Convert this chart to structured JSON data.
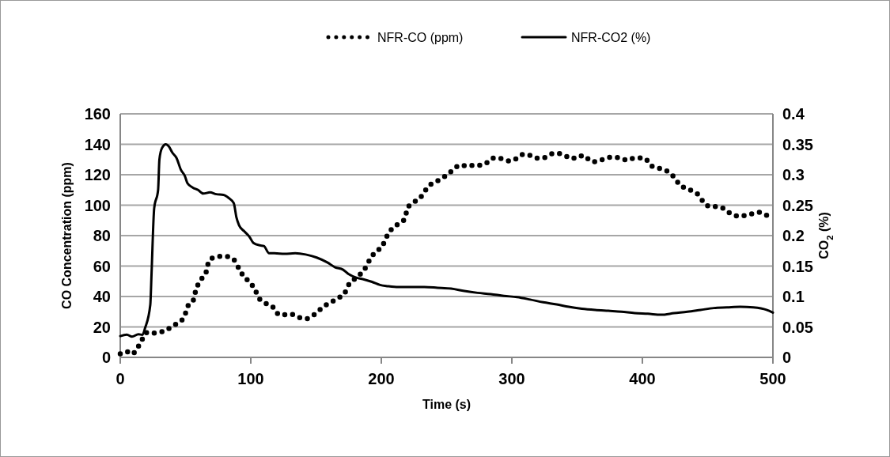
{
  "chart_data": {
    "type": "line",
    "xlabel": "Time (s)",
    "ylabel": "CO Concentration (ppm)",
    "y2label": "CO$_{2}$ (%)",
    "xlim": [
      0,
      500
    ],
    "xticks": [
      0,
      100,
      200,
      300,
      400,
      500
    ],
    "ylim": [
      0,
      160
    ],
    "yticks": [
      0,
      20,
      40,
      60,
      80,
      100,
      120,
      140,
      160
    ],
    "y2lim": [
      0,
      0.4
    ],
    "y2ticks": [
      0,
      0.05,
      0.1,
      0.15,
      0.2,
      0.25,
      0.3,
      0.35,
      0.4
    ],
    "grid": "y",
    "legend": "top",
    "series": [
      {
        "name": "NFR-CO (ppm)",
        "color": "#000000",
        "line_style": "dotted",
        "x": [
          0,
          5,
          9,
          14,
          21,
          25,
          30,
          35,
          40,
          45,
          49,
          52,
          56,
          58,
          62,
          66,
          68,
          73,
          78,
          82,
          87,
          91,
          95,
          99,
          103,
          107,
          111,
          116,
          120,
          123,
          128,
          132,
          137,
          142,
          147,
          152,
          156,
          161,
          166,
          172,
          175,
          180,
          184,
          188,
          192,
          196,
          201,
          204,
          208,
          213,
          218,
          220,
          225,
          230,
          234,
          238,
          243,
          248,
          252,
          257,
          261,
          266,
          271,
          276,
          281,
          285,
          290,
          295,
          299,
          304,
          309,
          314,
          318,
          323,
          327,
          332,
          337,
          342,
          346,
          351,
          356,
          360,
          364,
          369,
          374,
          379,
          384,
          388,
          392,
          397,
          402,
          406,
          410,
          415,
          420,
          425,
          429,
          433,
          438,
          443,
          447,
          452,
          456,
          460,
          465,
          470,
          475,
          480,
          485,
          490,
          494,
          499
        ],
        "values": [
          2.3,
          3.8,
          2.1,
          7.4,
          16.5,
          15.9,
          16.5,
          17.7,
          20.7,
          23,
          26.7,
          34,
          37.6,
          44.4,
          51.2,
          56.5,
          63.6,
          65.9,
          66.4,
          66.2,
          64.2,
          58.3,
          52.6,
          49.7,
          44.7,
          38,
          35.6,
          34,
          29.2,
          27.7,
          28.3,
          28.2,
          26.2,
          25.3,
          27.1,
          30.6,
          33.6,
          35.9,
          38.6,
          42.3,
          47.7,
          51.8,
          54.7,
          59,
          65.5,
          69.5,
          73.5,
          79.2,
          84.4,
          87.7,
          91,
          98,
          102,
          105,
          110,
          113.8,
          116,
          118.5,
          121,
          124.8,
          126.4,
          125.6,
          126.2,
          126.2,
          128,
          130.8,
          131,
          129.5,
          129,
          130.8,
          133.5,
          132.7,
          131,
          130.8,
          132,
          134,
          133.8,
          132,
          130.5,
          132.4,
          132.4,
          129,
          128.6,
          129.8,
          131.4,
          131.4,
          131,
          129.5,
          130.6,
          131,
          130.8,
          126.4,
          124.8,
          123.8,
          121.8,
          117.7,
          112.9,
          111.4,
          109.4,
          106.8,
          101.8,
          99.1,
          99.1,
          98.8,
          95.8,
          93.5,
          92.7,
          93.5,
          94.5,
          95.3,
          93.8,
          92
        ]
      },
      {
        "name": "NFR-CO2 (%)",
        "color": "#000000",
        "line_style": "solid",
        "axis": "y2",
        "x": [
          0,
          5,
          9,
          14,
          17,
          19,
          23,
          24,
          26,
          29,
          30,
          32,
          35,
          37,
          40,
          43,
          46.5,
          49.5,
          51.5,
          55.5,
          59.6,
          63.6,
          68.7,
          73.7,
          79,
          83,
          87,
          89,
          91,
          95,
          99,
          102,
          107,
          110,
          114,
          118,
          126,
          134,
          142,
          150.5,
          158.6,
          164.6,
          170.7,
          174.8,
          180.8,
          186.8,
          192.9,
          199,
          205,
          213,
          223,
          233,
          243,
          253.5,
          263.6,
          273.7,
          283.8,
          293.9,
          304,
          314,
          324,
          334.3,
          343.6,
          353.7,
          363.8,
          373.9,
          384,
          394.1,
          404.2,
          414.3,
          424.4,
          434.5,
          444.6,
          454.7,
          464.8,
          474.9,
          485,
          495.1,
          500
        ],
        "values": [
          0.035,
          0.0375,
          0.034,
          0.038,
          0.037,
          0.048,
          0.086,
          0.139,
          0.245,
          0.275,
          0.325,
          0.344,
          0.35,
          0.347,
          0.336,
          0.328,
          0.308,
          0.298,
          0.286,
          0.279,
          0.275,
          0.269,
          0.271,
          0.268,
          0.267,
          0.262,
          0.253,
          0.23,
          0.217,
          0.207,
          0.198,
          0.188,
          0.184,
          0.183,
          0.171,
          0.171,
          0.17,
          0.171,
          0.169,
          0.164,
          0.156,
          0.148,
          0.144,
          0.137,
          0.131,
          0.128,
          0.124,
          0.119,
          0.117,
          0.1155,
          0.1155,
          0.1155,
          0.1144,
          0.113,
          0.109,
          0.106,
          0.104,
          0.101,
          0.099,
          0.095,
          0.0905,
          0.087,
          0.083,
          0.08,
          0.078,
          0.0765,
          0.075,
          0.0727,
          0.0716,
          0.07,
          0.0727,
          0.075,
          0.078,
          0.081,
          0.082,
          0.083,
          0.082,
          0.078,
          0.0735
        ]
      }
    ]
  }
}
